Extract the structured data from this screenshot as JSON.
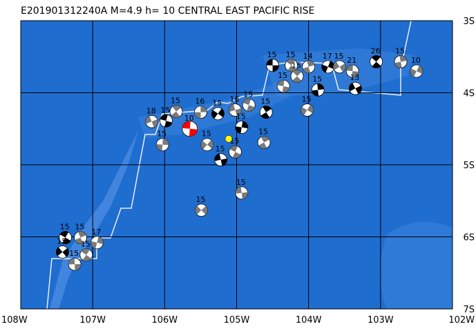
{
  "title": "E201901312240A M=4.9 h= 10 CENTRAL EAST PACIFIC RISE",
  "map": {
    "xlim": [
      -108,
      -102
    ],
    "ylim": [
      -7,
      -3
    ],
    "xticks": [
      {
        "value": -108,
        "label": "108W"
      },
      {
        "value": -107,
        "label": "107W"
      },
      {
        "value": -106,
        "label": "106W"
      },
      {
        "value": -105,
        "label": "105W"
      },
      {
        "value": -104,
        "label": "104W"
      },
      {
        "value": -103,
        "label": "103W"
      },
      {
        "value": -102,
        "label": "102W"
      }
    ],
    "yticks": [
      {
        "value": -3,
        "label": "3S"
      },
      {
        "value": -4,
        "label": "4S"
      },
      {
        "value": -5,
        "label": "5S"
      },
      {
        "value": -6,
        "label": "6S"
      },
      {
        "value": -7,
        "label": "7S"
      }
    ],
    "grid": true
  },
  "events": [
    {
      "lon": -104.5,
      "lat": -3.62,
      "depth": 15
    },
    {
      "lon": -104.24,
      "lat": -3.62,
      "depth": 15
    },
    {
      "lon": -104.0,
      "lat": -3.64,
      "depth": 14
    },
    {
      "lon": -103.73,
      "lat": -3.64,
      "depth": 17
    },
    {
      "lon": -103.57,
      "lat": -3.64,
      "depth": 15
    },
    {
      "lon": -103.39,
      "lat": -3.7,
      "depth": 21
    },
    {
      "lon": -103.06,
      "lat": -3.57,
      "depth": 26
    },
    {
      "lon": -102.72,
      "lat": -3.57,
      "depth": 15
    },
    {
      "lon": -102.5,
      "lat": -3.7,
      "depth": 10
    },
    {
      "lon": -103.35,
      "lat": -3.94,
      "depth": 13
    },
    {
      "lon": -104.35,
      "lat": -3.91,
      "depth": 15
    },
    {
      "lon": -104.16,
      "lat": -3.77,
      "depth": 15
    },
    {
      "lon": -103.87,
      "lat": -3.96,
      "depth": 15
    },
    {
      "lon": -104.02,
      "lat": -4.24,
      "depth": 15
    },
    {
      "lon": -106.18,
      "lat": -4.4,
      "depth": 18
    },
    {
      "lon": -105.98,
      "lat": -4.39,
      "depth": 15
    },
    {
      "lon": -105.84,
      "lat": -4.26,
      "depth": 15
    },
    {
      "lon": -105.5,
      "lat": -4.27,
      "depth": 16
    },
    {
      "lon": -105.26,
      "lat": -4.29,
      "depth": 15
    },
    {
      "lon": -105.02,
      "lat": -4.24,
      "depth": 16
    },
    {
      "lon": -104.83,
      "lat": -4.17,
      "depth": 15
    },
    {
      "lon": -104.59,
      "lat": -4.27,
      "depth": 15
    },
    {
      "lon": -106.03,
      "lat": -4.72,
      "depth": 15
    },
    {
      "lon": -105.41,
      "lat": -4.72,
      "depth": 15
    },
    {
      "lon": -105.22,
      "lat": -4.93,
      "depth": 15
    },
    {
      "lon": -105.02,
      "lat": -4.82,
      "depth": 15
    },
    {
      "lon": -104.62,
      "lat": -4.69,
      "depth": 15
    },
    {
      "lon": -104.93,
      "lat": -4.48,
      "depth": 15
    },
    {
      "lon": -105.49,
      "lat": -5.63,
      "depth": 15
    },
    {
      "lon": -104.93,
      "lat": -5.39,
      "depth": 15
    },
    {
      "lon": -107.38,
      "lat": -6.01,
      "depth": 15
    },
    {
      "lon": -107.17,
      "lat": -6.01,
      "depth": 15
    },
    {
      "lon": -106.94,
      "lat": -6.08,
      "depth": 17
    },
    {
      "lon": -107.42,
      "lat": -6.21,
      "depth": 15
    },
    {
      "lon": -107.25,
      "lat": -6.38,
      "depth": 15
    },
    {
      "lon": -107.09,
      "lat": -6.25,
      "depth": 15
    }
  ],
  "main_event": {
    "lon": -105.65,
    "lat": -4.5,
    "depth": 10,
    "color": "#ff0000"
  },
  "epicenter": {
    "lon": -105.11,
    "lat": -4.64,
    "color": "#ffff00"
  }
}
